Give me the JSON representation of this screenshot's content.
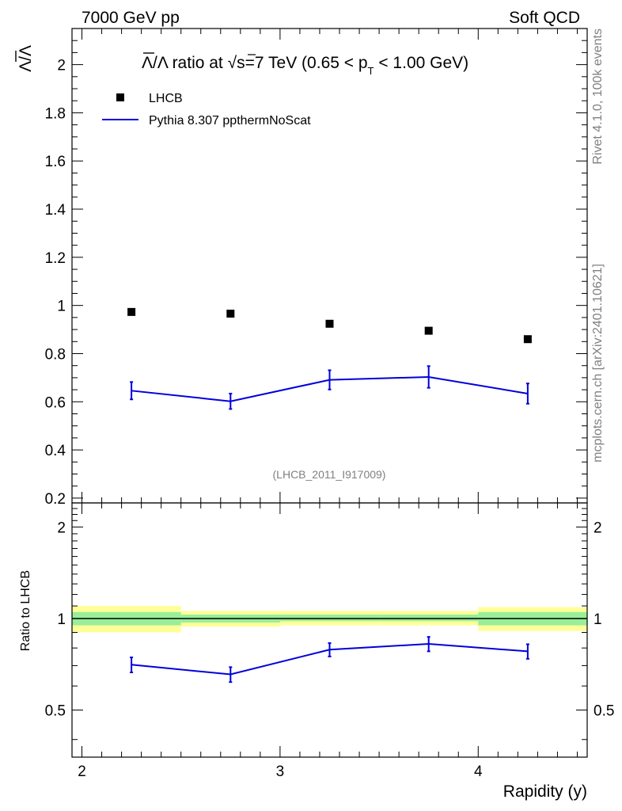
{
  "header": {
    "left": "7000 GeV pp",
    "right": "Soft QCD"
  },
  "side_labels": {
    "rivet": "Rivet 4.1.0,  100k events",
    "mcplots": "mcplots.cern.ch [arXiv:2401.10621]"
  },
  "chart_data": [
    {
      "type": "scatter",
      "panel": "main",
      "title": "Λ̄/Λ ratio at √s=7 TeV (0.65 < pT < 1.00 GeV)",
      "title_parts": {
        "prefix": "Λ",
        "ratio_text": "/Λ ratio at ",
        "sqrt": "√",
        "s_eq": "s=7 TeV (0.65 < p",
        "sub": "T",
        "suffix": " < 1.00 GeV)"
      },
      "ylabel": "Λ̄/Λ",
      "ylabel_parts": {
        "num": "Λ",
        "rest": "/Λ"
      },
      "analysis_id": "(LHCB_2011_I917009)",
      "xlim": [
        1.95,
        4.55
      ],
      "ylim": [
        0.18,
        2.15
      ],
      "yticks": [
        0.2,
        0.4,
        0.6,
        0.8,
        1,
        1.2,
        1.4,
        1.6,
        1.8,
        2
      ],
      "ytick_labels": [
        "0.2",
        "0.4",
        "0.6",
        "0.8",
        "1",
        "1.2",
        "1.4",
        "1.6",
        "1.8",
        "2"
      ],
      "legend": [
        {
          "name": "LHCB",
          "style": "marker"
        },
        {
          "name": "Pythia 8.307 ppthermNoScat",
          "style": "line"
        }
      ],
      "series": [
        {
          "name": "LHCB",
          "x": [
            2.25,
            2.75,
            3.25,
            3.75,
            4.25
          ],
          "y": [
            0.973,
            0.966,
            0.924,
            0.895,
            0.86
          ],
          "color": "#000000"
        },
        {
          "name": "Pythia 8.307 ppthermNoScat",
          "x": [
            2.25,
            2.75,
            3.25,
            3.75,
            4.25
          ],
          "y": [
            0.646,
            0.602,
            0.691,
            0.703,
            0.634
          ],
          "yerr": [
            0.036,
            0.032,
            0.04,
            0.045,
            0.042
          ],
          "xedges": [
            2.0,
            2.5,
            3.0,
            3.5,
            4.0,
            4.5
          ],
          "color": "#0000dd"
        }
      ]
    },
    {
      "type": "line",
      "panel": "ratio",
      "ylabel": "Ratio to LHCB",
      "xlabel": "Rapidity (y)",
      "xlim": [
        1.95,
        4.55
      ],
      "ylim": [
        0.35,
        2.4
      ],
      "xticks": [
        2,
        3,
        4
      ],
      "xtick_labels": [
        "2",
        "3",
        "4"
      ],
      "yticks": [
        0.5,
        1,
        2
      ],
      "ytick_labels": [
        "0.5",
        "1",
        "2"
      ],
      "bands": {
        "xedges": [
          1.95,
          2.5,
          3.0,
          3.5,
          4.0,
          4.55
        ],
        "yellow": [
          [
            0.9,
            1.1
          ],
          [
            0.94,
            1.06
          ],
          [
            0.95,
            1.06
          ],
          [
            0.95,
            1.06
          ],
          [
            0.91,
            1.09
          ]
        ],
        "green": [
          [
            0.95,
            1.05
          ],
          [
            0.97,
            1.03
          ],
          [
            0.98,
            1.03
          ],
          [
            0.98,
            1.03
          ],
          [
            0.95,
            1.05
          ]
        ],
        "yellow_color": "#ffff99",
        "green_color": "#99ee99"
      },
      "series": [
        {
          "name": "Pythia 8.307 ppthermNoScat",
          "x": [
            2.25,
            2.75,
            3.25,
            3.75,
            4.25
          ],
          "y": [
            0.705,
            0.655,
            0.79,
            0.825,
            0.78
          ],
          "yerr": [
            0.04,
            0.037,
            0.04,
            0.045,
            0.043
          ],
          "color": "#0000dd"
        }
      ]
    }
  ]
}
